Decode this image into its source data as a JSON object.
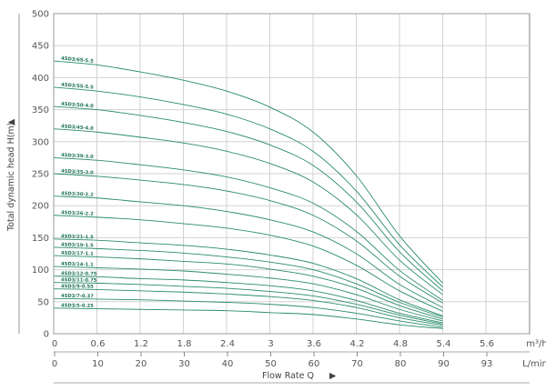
{
  "chart_data": {
    "type": "line",
    "title": "",
    "ylabel": "Total dynamic head H(m)",
    "xlabel": "Flow Rate Q",
    "ylim": [
      0,
      500
    ],
    "yticks": [
      0,
      50,
      100,
      150,
      200,
      250,
      300,
      350,
      400,
      450,
      500
    ],
    "xunit": "m³/h",
    "xticks": [
      "0",
      "0.6",
      "1.2",
      "1.8",
      "2.4",
      "3",
      "3.6",
      "4.2",
      "4.8",
      "5.4",
      "5.6"
    ],
    "x2unit": "L/min",
    "x2ticks": [
      "0",
      "10",
      "20",
      "30",
      "40",
      "50",
      "60",
      "70",
      "80",
      "90",
      "93"
    ],
    "grid": true,
    "curve_color": "#2a8c6e",
    "label_color": "#1c7256",
    "x": [
      0,
      0.6,
      1.2,
      1.8,
      2.4,
      3.0,
      3.6,
      4.2,
      4.8,
      5.4
    ],
    "series": [
      {
        "name": "4SD3/65-5.5",
        "values": [
          426,
          420,
          409,
          396,
          379,
          354,
          315,
          247,
          153,
          79
        ]
      },
      {
        "name": "4SD3/55-5.5",
        "values": [
          385,
          379,
          370,
          358,
          343,
          320,
          285,
          223,
          139,
          73
        ]
      },
      {
        "name": "4SD3/50-4.0",
        "values": [
          355,
          350,
          341,
          330,
          316,
          295,
          263,
          206,
          128,
          67
        ]
      },
      {
        "name": "4SD3/45-4.0",
        "values": [
          320,
          315,
          307,
          298,
          285,
          266,
          237,
          186,
          115,
          61
        ]
      },
      {
        "name": "4SD3/39-3.0",
        "values": [
          275,
          271,
          264,
          256,
          245,
          228,
          204,
          160,
          99,
          52
        ]
      },
      {
        "name": "4SD3/35-3.0",
        "values": [
          250,
          246,
          240,
          233,
          223,
          208,
          185,
          145,
          90,
          48
        ]
      },
      {
        "name": "4SD3/30-2.2",
        "values": [
          215,
          212,
          206,
          200,
          191,
          178,
          159,
          125,
          77,
          41
        ]
      },
      {
        "name": "4SD3/26-2.2",
        "values": [
          185,
          182,
          178,
          172,
          165,
          154,
          137,
          107,
          67,
          35
        ]
      },
      {
        "name": "4SD3/21-1.5",
        "values": [
          148,
          146,
          142,
          138,
          132,
          123,
          110,
          86,
          53,
          28
        ]
      },
      {
        "name": "4SD3/19-1.5",
        "values": [
          135,
          133,
          130,
          126,
          120,
          112,
          100,
          78,
          49,
          26
        ]
      },
      {
        "name": "4SD3/17-1.1",
        "values": [
          122,
          120,
          117,
          113,
          109,
          101,
          90,
          71,
          44,
          23
        ]
      },
      {
        "name": "4SD3/14-1.1",
        "values": [
          105,
          103,
          101,
          98,
          93,
          87,
          78,
          61,
          38,
          20
        ]
      },
      {
        "name": "4SD3/12-0.75",
        "values": [
          90,
          89,
          86,
          84,
          80,
          75,
          67,
          52,
          32,
          17
        ]
      },
      {
        "name": "4SD3/11-0.75",
        "values": [
          80,
          79,
          77,
          74,
          71,
          66,
          59,
          46,
          29,
          15
        ]
      },
      {
        "name": "4SD3/9-0.55",
        "values": [
          70,
          69,
          67,
          65,
          62,
          58,
          52,
          41,
          25,
          13
        ]
      },
      {
        "name": "4SD3/7-0.37",
        "values": [
          55,
          54,
          53,
          51,
          49,
          46,
          41,
          32,
          20,
          10
        ]
      },
      {
        "name": "4SD3/5-0.25",
        "values": [
          40,
          39,
          38,
          37,
          36,
          33,
          30,
          23,
          14,
          8
        ]
      }
    ]
  }
}
